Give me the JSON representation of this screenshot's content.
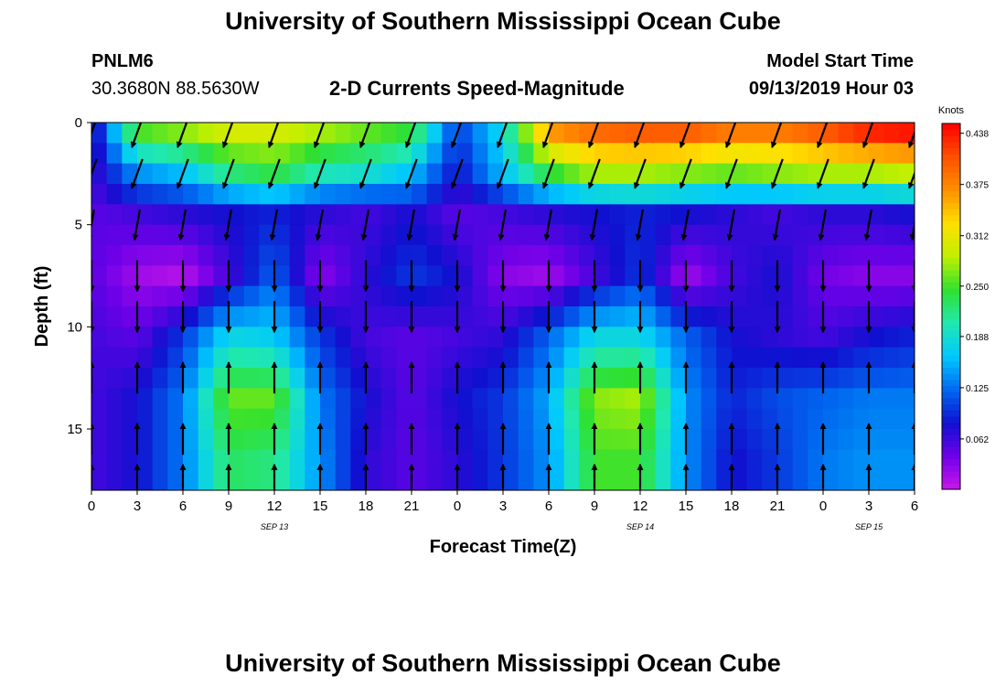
{
  "page": {
    "title_top": "University of Southern Mississippi Ocean Cube",
    "title_bottom": "University of Southern Mississippi Ocean Cube",
    "station_id": "PNLM6",
    "station_coords": "30.3680N 88.5630W",
    "plot_title": "2-D Currents Speed-Magnitude",
    "model_start_label": "Model Start Time",
    "model_start_value": "09/13/2019 Hour 03"
  },
  "chart_data": {
    "type": "heatmap",
    "title": "2-D Currents Speed-Magnitude",
    "xlabel": "Forecast Time(Z)",
    "ylabel": "Depth (ft)",
    "xlim": [
      0,
      54
    ],
    "ylim": [
      0,
      18
    ],
    "x_ticks": [
      0,
      3,
      6,
      9,
      12,
      15,
      18,
      21,
      24,
      27,
      30,
      33,
      36,
      39,
      42,
      45,
      48,
      51,
      54
    ],
    "x_tick_labels": [
      "0",
      "3",
      "6",
      "9",
      "12",
      "15",
      "18",
      "21",
      "0",
      "3",
      "6",
      "9",
      "12",
      "15",
      "18",
      "21",
      "0",
      "3",
      "6"
    ],
    "y_ticks": [
      0,
      5,
      10,
      15
    ],
    "y_tick_labels": [
      "0",
      "5",
      "10",
      "15"
    ],
    "date_labels": [
      {
        "hour": 12,
        "text": "SEP 13"
      },
      {
        "hour": 36,
        "text": "SEP 14"
      },
      {
        "hour": 51,
        "text": "SEP 15"
      }
    ],
    "colorbar": {
      "title": "Knots",
      "min": 0,
      "max": 0.45,
      "ticks": [
        0.438,
        0.375,
        0.312,
        0.25,
        0.188,
        0.125,
        0.062
      ],
      "colors": [
        "#c818e8",
        "#7000e8",
        "#1010d0",
        "#0068f0",
        "#00c8ff",
        "#20e8b0",
        "#30e030",
        "#c0f000",
        "#ffe000",
        "#ff9000",
        "#ff5000",
        "#ff0000"
      ]
    },
    "units": "knots",
    "depth_bins_ft": [
      0.5,
      1.5,
      2.5,
      3.5,
      4.5,
      5.5,
      6.5,
      7.5,
      8.5,
      9.5,
      10.5,
      11.5,
      12.5,
      13.5,
      14.5,
      15.5,
      16.5,
      17.5
    ],
    "speed_profiles": [
      {
        "depth_ft": 0.5,
        "knots": [
          0.06,
          0.25,
          0.27,
          0.3,
          0.3,
          0.28,
          0.26,
          0.24,
          0.1,
          0.18,
          0.36,
          0.39,
          0.4,
          0.4,
          0.38,
          0.38,
          0.4,
          0.43,
          0.44
        ]
      },
      {
        "depth_ft": 2.5,
        "knots": [
          0.06,
          0.14,
          0.16,
          0.22,
          0.24,
          0.2,
          0.19,
          0.16,
          0.08,
          0.16,
          0.24,
          0.28,
          0.28,
          0.27,
          0.26,
          0.27,
          0.28,
          0.28,
          0.29
        ]
      },
      {
        "depth_ft": 4.5,
        "knots": [
          0.05,
          0.06,
          0.07,
          0.08,
          0.09,
          0.07,
          0.06,
          0.08,
          0.05,
          0.06,
          0.07,
          0.08,
          0.09,
          0.08,
          0.07,
          0.06,
          0.07,
          0.07,
          0.08
        ]
      },
      {
        "depth_ft": 7.5,
        "knots": [
          0.05,
          0.02,
          0.01,
          0.06,
          0.12,
          0.03,
          0.07,
          0.1,
          0.08,
          0.03,
          0.02,
          0.06,
          0.1,
          0.02,
          0.06,
          0.08,
          0.04,
          0.03,
          0.03
        ]
      },
      {
        "depth_ft": 10.5,
        "knots": [
          0.06,
          0.05,
          0.1,
          0.18,
          0.17,
          0.1,
          0.06,
          0.05,
          0.06,
          0.07,
          0.12,
          0.18,
          0.18,
          0.12,
          0.08,
          0.07,
          0.06,
          0.08,
          0.09
        ]
      },
      {
        "depth_ft": 13.5,
        "knots": [
          0.06,
          0.08,
          0.13,
          0.26,
          0.26,
          0.13,
          0.08,
          0.05,
          0.08,
          0.1,
          0.15,
          0.27,
          0.28,
          0.14,
          0.09,
          0.11,
          0.12,
          0.13,
          0.13
        ]
      },
      {
        "depth_ft": 16.5,
        "knots": [
          0.06,
          0.08,
          0.13,
          0.23,
          0.22,
          0.14,
          0.07,
          0.05,
          0.07,
          0.1,
          0.14,
          0.25,
          0.25,
          0.14,
          0.08,
          0.1,
          0.13,
          0.14,
          0.14
        ]
      }
    ],
    "vector_arrows": {
      "depths_ft": [
        0.5,
        2.5,
        5.0,
        7.5,
        9.5,
        12.5,
        15.5,
        17.5
      ],
      "direction_deg_by_depth": [
        200,
        200,
        190,
        180,
        180,
        0,
        0,
        0
      ],
      "note": "direction arrows drawn at each forecast hour column"
    }
  }
}
